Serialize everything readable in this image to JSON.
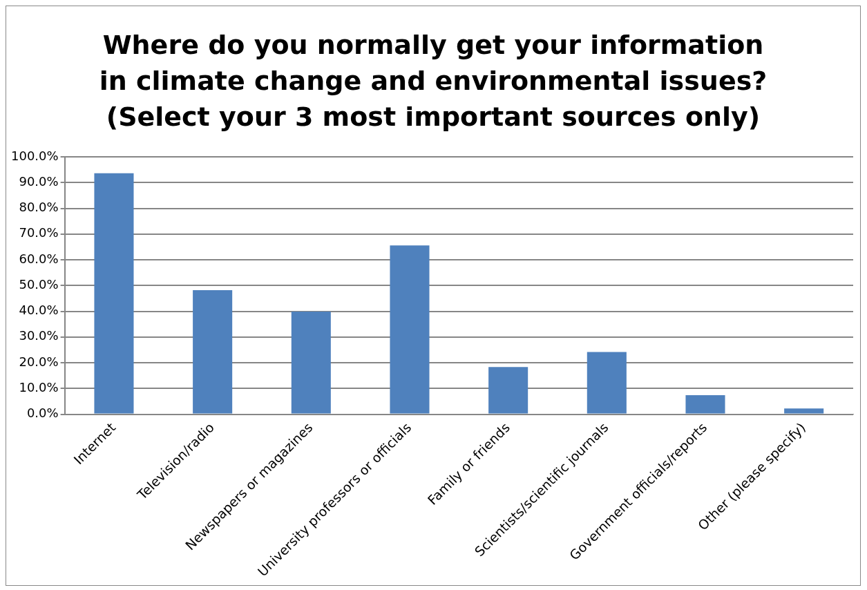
{
  "chart_data": {
    "type": "bar",
    "title": "Where do you normally get your information in climate change and environmental issues? (Select your 3 most important sources only)",
    "categories": [
      "Internet",
      "Television/radio",
      "Newspapers or magazines",
      "University professors or officials",
      "Family or friends",
      "Scientists/scientific journals",
      "Government officials/reports",
      "Other (please specify)"
    ],
    "values": [
      93.6,
      48.2,
      39.9,
      65.6,
      18.3,
      24.2,
      7.4,
      2.2
    ],
    "color": "#4f81bd",
    "ylim": [
      0,
      100
    ],
    "yticks": [
      {
        "value": 0,
        "label": "0.0%"
      },
      {
        "value": 10,
        "label": "10.0%"
      },
      {
        "value": 20,
        "label": "20.0%"
      },
      {
        "value": 30,
        "label": "30.0%"
      },
      {
        "value": 40,
        "label": "40.0%"
      },
      {
        "value": 50,
        "label": "50.0%"
      },
      {
        "value": 60,
        "label": "60.0%"
      },
      {
        "value": 70,
        "label": "70.0%"
      },
      {
        "value": 80,
        "label": "80.0%"
      },
      {
        "value": 90,
        "label": "90.0%"
      },
      {
        "value": 100,
        "label": "100.0%"
      }
    ],
    "grid": "y",
    "legend": false
  }
}
